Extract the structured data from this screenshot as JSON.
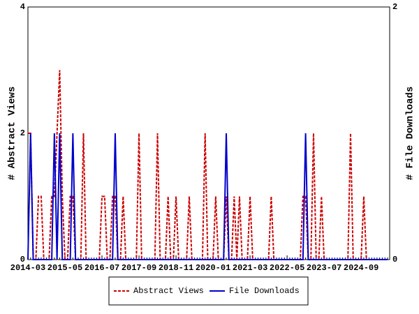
{
  "chart_data": {
    "type": "line",
    "categories": [
      "2014-03",
      null,
      null,
      null,
      null,
      null,
      null,
      null,
      null,
      null,
      null,
      null,
      null,
      null,
      "2015-05",
      null,
      null,
      null,
      null,
      null,
      null,
      null,
      null,
      null,
      null,
      null,
      null,
      null,
      "2016-07",
      null,
      null,
      null,
      null,
      null,
      null,
      null,
      null,
      null,
      null,
      null,
      null,
      null,
      "2017-09",
      null,
      null,
      null,
      null,
      null,
      null,
      null,
      null,
      null,
      null,
      null,
      null,
      null,
      "2018-11",
      null,
      null,
      null,
      null,
      null,
      null,
      null,
      null,
      null,
      null,
      null,
      null,
      null,
      "2020-01",
      null,
      null,
      null,
      null,
      null,
      null,
      null,
      null,
      null,
      null,
      null,
      null,
      null,
      "2021-03",
      null,
      null,
      null,
      null,
      null,
      null,
      null,
      null,
      null,
      null,
      null,
      null,
      null,
      "2022-05",
      null,
      null,
      null,
      null,
      null,
      null,
      null,
      null,
      null,
      null,
      null,
      null,
      null,
      "2023-07",
      null,
      null,
      null,
      null,
      null,
      null,
      null,
      null,
      null,
      null,
      null,
      null,
      null,
      "2024-09",
      null,
      null,
      null,
      null,
      null,
      null,
      null,
      null,
      null,
      null
    ],
    "ylabel": "# Abstract Views",
    "y2label": "# File Downloads",
    "ylim": [
      0,
      4
    ],
    "yticks": [
      0,
      2,
      4
    ],
    "y2lim": [
      0,
      2
    ],
    "y2ticks": [
      0,
      2
    ],
    "series": [
      {
        "name": "Abstract Views",
        "color": "#cc0000",
        "dashed": true,
        "values": [
          2,
          2,
          0,
          0,
          1,
          1,
          0,
          0,
          0,
          1,
          1,
          2,
          3,
          1,
          0,
          0,
          1,
          1,
          0,
          0,
          0,
          2,
          0,
          0,
          0,
          0,
          0,
          0,
          1,
          1,
          0,
          0,
          1,
          1,
          0,
          0,
          1,
          0,
          0,
          0,
          0,
          0,
          2,
          0,
          0,
          0,
          0,
          0,
          0,
          2,
          0,
          0,
          0,
          1,
          0,
          0,
          1,
          0,
          0,
          0,
          0,
          1,
          0,
          0,
          0,
          0,
          0,
          2,
          0,
          0,
          0,
          1,
          0,
          0,
          0,
          1,
          0,
          0,
          1,
          0,
          1,
          0,
          0,
          0,
          1,
          0,
          0,
          0,
          0,
          0,
          0,
          0,
          1,
          0,
          0,
          0,
          0,
          0,
          0,
          0,
          0,
          0,
          0,
          0,
          1,
          1,
          0,
          0,
          2,
          0,
          0,
          1,
          0,
          0,
          0,
          0,
          0,
          0,
          0,
          0,
          0,
          0,
          2,
          0,
          0,
          0,
          0,
          1,
          0,
          0,
          0,
          0,
          0,
          0,
          0,
          0,
          0
        ]
      },
      {
        "name": "File Downloads",
        "color": "#0000cc",
        "dashed": false,
        "axis": "y2",
        "values": [
          0,
          1,
          0,
          0,
          0,
          0,
          0,
          0,
          0,
          0,
          1,
          0,
          1,
          0,
          0,
          0,
          0,
          1,
          0,
          0,
          0,
          0,
          0,
          0,
          0,
          0,
          0,
          0,
          0,
          0,
          0,
          0,
          0,
          1,
          0,
          0,
          0,
          0,
          0,
          0,
          0,
          0,
          0,
          0,
          0,
          0,
          0,
          0,
          0,
          0,
          0,
          0,
          0,
          0,
          0,
          0,
          0,
          0,
          0,
          0,
          0,
          0,
          0,
          0,
          0,
          0,
          0,
          0,
          0,
          0,
          0,
          0,
          0,
          0,
          0,
          1,
          0,
          0,
          0,
          0,
          0,
          0,
          0,
          0,
          0,
          0,
          0,
          0,
          0,
          0,
          0,
          0,
          0,
          0,
          0,
          0,
          0,
          0,
          0,
          0,
          0,
          0,
          0,
          0,
          0,
          1,
          0,
          0,
          0,
          0,
          0,
          0,
          0,
          0,
          0,
          0,
          0,
          0,
          0,
          0,
          0,
          0,
          0,
          0,
          0,
          0,
          0,
          0,
          0,
          0,
          0,
          0,
          0,
          0,
          0,
          0,
          0
        ]
      }
    ]
  }
}
